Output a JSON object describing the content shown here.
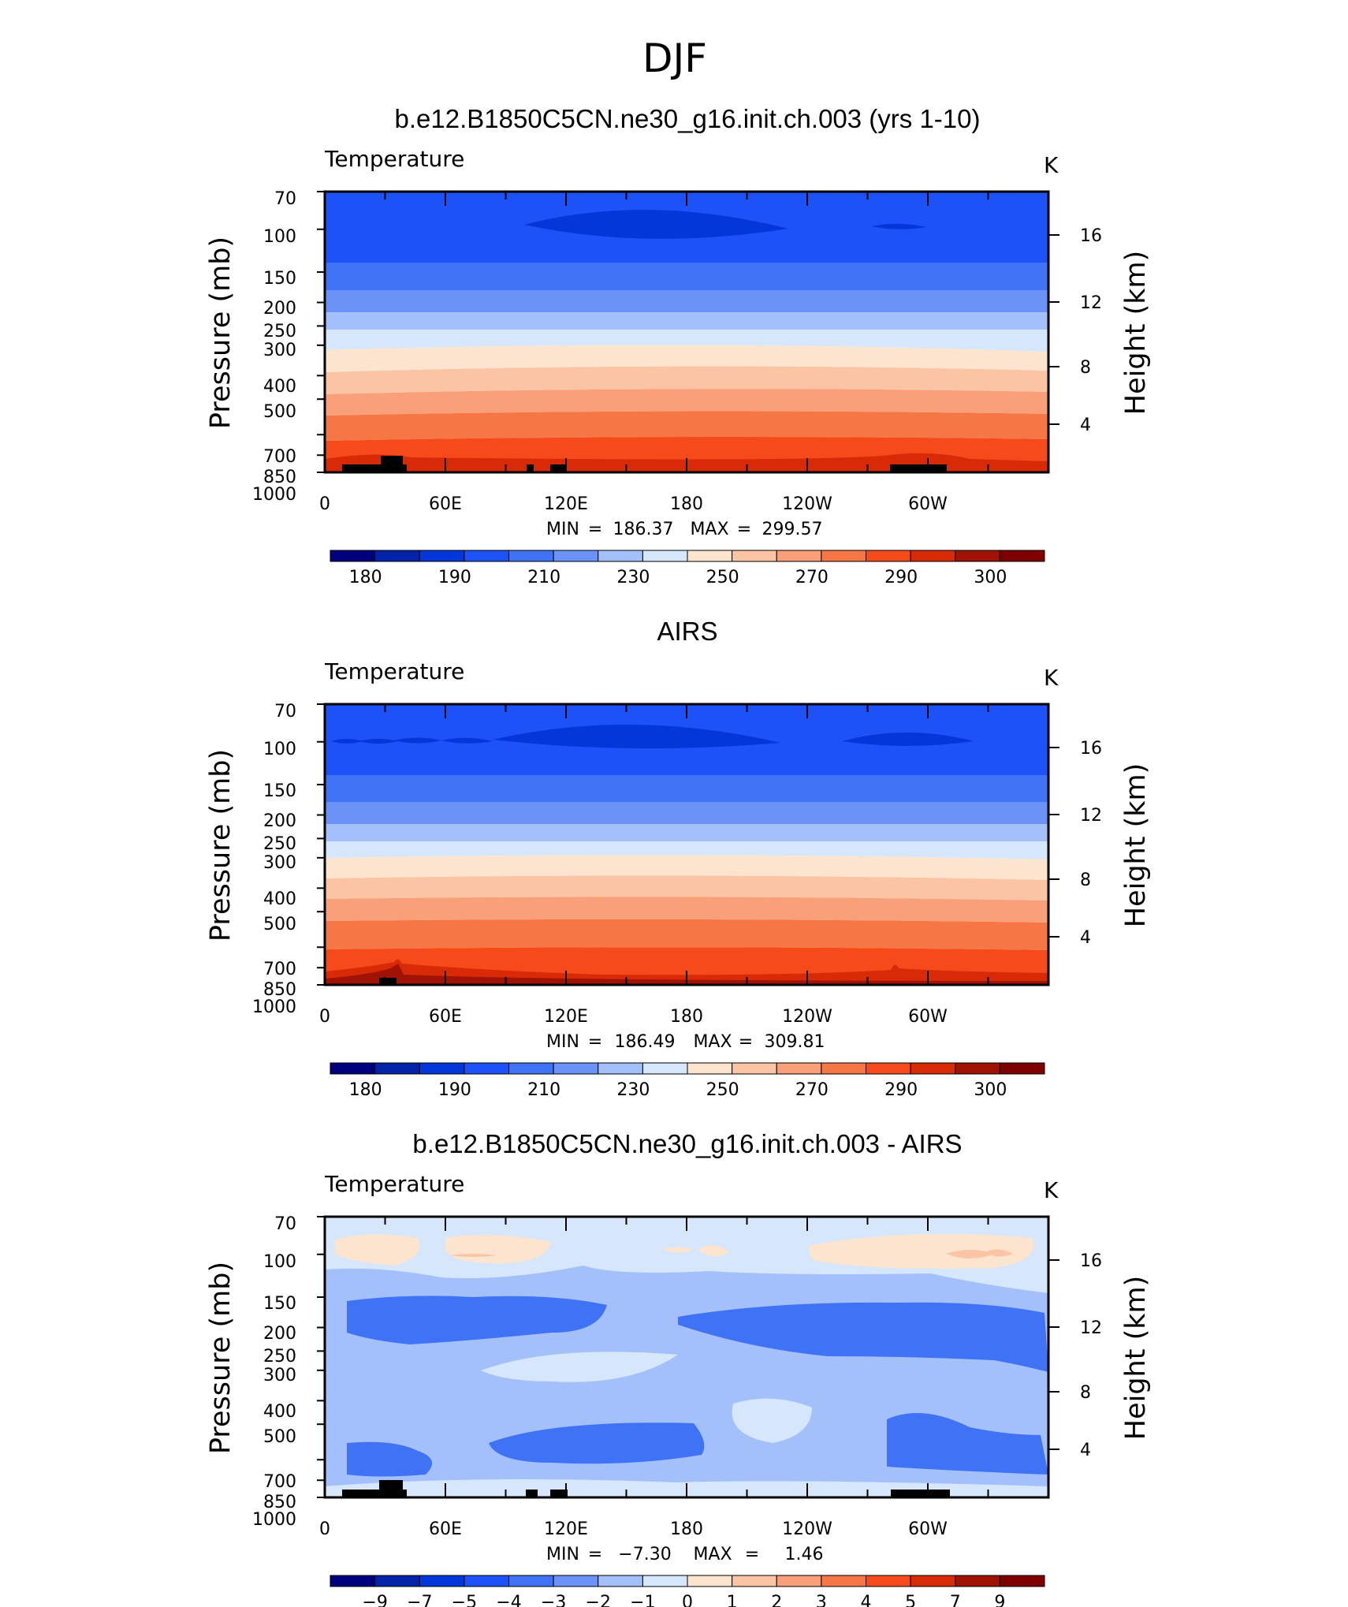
{
  "figure": {
    "title": "DJF"
  },
  "panels": [
    {
      "title": "b.e12.B1850C5CN.ne30_g16.init.ch.003 (yrs 1-10)",
      "variable": "Temperature",
      "units": "K",
      "ylabel": "Pressure (mb)",
      "ylabel_right": "Height (km)",
      "pressure_ticks": [
        "70",
        "100",
        "150",
        "200",
        "250",
        "300",
        "400",
        "500",
        "700",
        "850",
        "1000"
      ],
      "height_ticks": [
        "16",
        "12",
        "8",
        "4"
      ],
      "lon_ticks": [
        "0",
        "60E",
        "120E",
        "180",
        "120W",
        "60W"
      ],
      "stats": {
        "min_label": "MIN",
        "min": "186.37",
        "max_label": "MAX",
        "max": "299.57"
      },
      "colorbar_labels": [
        "180",
        "190",
        "210",
        "230",
        "250",
        "270",
        "290",
        "300"
      ]
    },
    {
      "title": "AIRS",
      "variable": "Temperature",
      "units": "K",
      "ylabel": "Pressure (mb)",
      "ylabel_right": "Height (km)",
      "pressure_ticks": [
        "70",
        "100",
        "150",
        "200",
        "250",
        "300",
        "400",
        "500",
        "700",
        "850",
        "1000"
      ],
      "height_ticks": [
        "16",
        "12",
        "8",
        "4"
      ],
      "lon_ticks": [
        "0",
        "60E",
        "120E",
        "180",
        "120W",
        "60W"
      ],
      "stats": {
        "min_label": "MIN",
        "min": "186.49",
        "max_label": "MAX",
        "max": "309.81"
      },
      "colorbar_labels": [
        "180",
        "190",
        "210",
        "230",
        "250",
        "270",
        "290",
        "300"
      ]
    },
    {
      "title": "b.e12.B1850C5CN.ne30_g16.init.ch.003 - AIRS",
      "variable": "Temperature",
      "units": "K",
      "ylabel": "Pressure (mb)",
      "ylabel_right": "Height (km)",
      "pressure_ticks": [
        "70",
        "100",
        "150",
        "200",
        "250",
        "300",
        "400",
        "500",
        "700",
        "850",
        "1000"
      ],
      "height_ticks": [
        "16",
        "12",
        "8",
        "4"
      ],
      "lon_ticks": [
        "0",
        "60E",
        "120E",
        "180",
        "120W",
        "60W"
      ],
      "stats": {
        "min_label": "MIN",
        "min": "−7.30",
        "max_label": "MAX",
        "max": "1.46"
      },
      "colorbar_labels": [
        "−9",
        "−7",
        "−5",
        "−4",
        "−3",
        "−2",
        "−1",
        "0",
        "1",
        "2",
        "3",
        "4",
        "5",
        "7",
        "9"
      ]
    }
  ],
  "chart_data": [
    {
      "type": "heatmap",
      "title": "b.e12.B1850C5CN.ne30_g16.init.ch.003 (yrs 1-10)",
      "xlabel": "",
      "ylabel": "Pressure (mb)",
      "xlim": [
        0,
        360
      ],
      "ylim": [
        1000,
        70
      ],
      "y_scale": "log",
      "min": 186.37,
      "max": 299.57,
      "colorbar_levels": [
        180,
        185,
        190,
        200,
        210,
        220,
        230,
        240,
        250,
        260,
        270,
        280,
        290,
        295,
        300
      ],
      "approx_zonal_mean_profile": [
        {
          "p": 70,
          "t": 205
        },
        {
          "p": 100,
          "t": 200
        },
        {
          "p": 150,
          "t": 208
        },
        {
          "p": 200,
          "t": 215
        },
        {
          "p": 250,
          "t": 225
        },
        {
          "p": 300,
          "t": 235
        },
        {
          "p": 400,
          "t": 250
        },
        {
          "p": 500,
          "t": 262
        },
        {
          "p": 700,
          "t": 280
        },
        {
          "p": 850,
          "t": 290
        },
        {
          "p": 1000,
          "t": 296
        }
      ]
    },
    {
      "type": "heatmap",
      "title": "AIRS",
      "xlabel": "",
      "ylabel": "Pressure (mb)",
      "xlim": [
        0,
        360
      ],
      "ylim": [
        1000,
        70
      ],
      "y_scale": "log",
      "min": 186.49,
      "max": 309.81,
      "colorbar_levels": [
        180,
        185,
        190,
        200,
        210,
        220,
        230,
        240,
        250,
        260,
        270,
        280,
        290,
        295,
        300
      ],
      "approx_zonal_mean_profile": [
        {
          "p": 70,
          "t": 205
        },
        {
          "p": 100,
          "t": 199
        },
        {
          "p": 150,
          "t": 208
        },
        {
          "p": 200,
          "t": 216
        },
        {
          "p": 250,
          "t": 226
        },
        {
          "p": 300,
          "t": 236
        },
        {
          "p": 400,
          "t": 251
        },
        {
          "p": 500,
          "t": 263
        },
        {
          "p": 700,
          "t": 281
        },
        {
          "p": 850,
          "t": 291
        },
        {
          "p": 1000,
          "t": 298
        }
      ]
    },
    {
      "type": "heatmap",
      "title": "b.e12.B1850C5CN.ne30_g16.init.ch.003 - AIRS",
      "xlabel": "",
      "ylabel": "Pressure (mb)",
      "xlim": [
        0,
        360
      ],
      "ylim": [
        1000,
        70
      ],
      "y_scale": "log",
      "min": -7.3,
      "max": 1.46,
      "colorbar_levels": [
        -9,
        -7,
        -5,
        -4,
        -3,
        -2,
        -1,
        0,
        1,
        2,
        3,
        4,
        5,
        7,
        9
      ],
      "approx_zonal_mean_profile": [
        {
          "p": 70,
          "t": -0.5
        },
        {
          "p": 100,
          "t": 0.5
        },
        {
          "p": 150,
          "t": -2.5
        },
        {
          "p": 200,
          "t": -3.5
        },
        {
          "p": 250,
          "t": -3
        },
        {
          "p": 300,
          "t": -2
        },
        {
          "p": 400,
          "t": -2.5
        },
        {
          "p": 500,
          "t": -3
        },
        {
          "p": 700,
          "t": -3.5
        },
        {
          "p": 850,
          "t": -2
        },
        {
          "p": 1000,
          "t": -0.5
        }
      ]
    }
  ],
  "colors": {
    "palette": [
      "#00007f",
      "#0324a8",
      "#0337d9",
      "#1c52f7",
      "#3f72f5",
      "#6b93f7",
      "#a4c0fa",
      "#d6e6fb",
      "#fde4cf",
      "#fbc4a4",
      "#f9a07a",
      "#f77646",
      "#f64a1a",
      "#d92a08",
      "#a01203",
      "#7f0000"
    ],
    "frame": "#000000"
  }
}
